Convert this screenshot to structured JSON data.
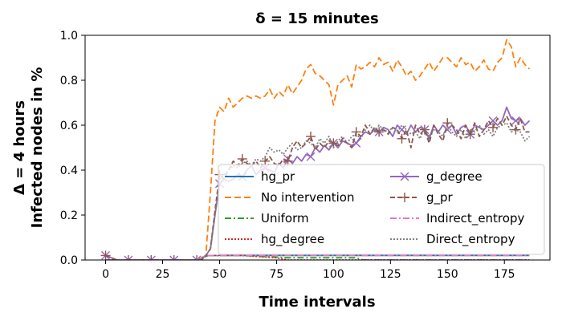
{
  "chart_data": {
    "type": "line",
    "title": "δ = 15 minutes",
    "xlabel": "Time intervals",
    "ylabel_line1": "Δ = 4 hours",
    "ylabel_line2": "Infected nodes in %",
    "xlim": [
      -9,
      195
    ],
    "ylim": [
      0,
      1.0
    ],
    "xticks": [
      0,
      25,
      50,
      75,
      100,
      125,
      150,
      175
    ],
    "yticks": [
      0.0,
      0.2,
      0.4,
      0.6,
      0.8,
      1.0
    ],
    "grid": false,
    "legend_placement": "lower-right",
    "series": [
      {
        "name": "hg_pr",
        "color": "#1f77b4",
        "dash": "",
        "marker": "",
        "x": [
          0,
          40,
          45,
          60,
          80,
          100,
          130,
          160,
          186
        ],
        "y": [
          0.0,
          0.0,
          0.02,
          0.02,
          0.02,
          0.02,
          0.02,
          0.02,
          0.02
        ]
      },
      {
        "name": "No intervention",
        "color": "#ff7f0e",
        "dash": "8,4",
        "marker": "",
        "x": [
          0,
          40,
          44,
          46,
          48,
          50,
          52,
          54,
          56,
          58,
          60,
          62,
          64,
          66,
          68,
          70,
          72,
          74,
          76,
          78,
          80,
          82,
          84,
          86,
          88,
          90,
          92,
          94,
          96,
          98,
          100,
          102,
          104,
          106,
          108,
          110,
          112,
          114,
          116,
          118,
          120,
          122,
          124,
          126,
          128,
          130,
          132,
          134,
          136,
          138,
          140,
          142,
          144,
          146,
          148,
          150,
          152,
          154,
          156,
          158,
          160,
          162,
          164,
          166,
          168,
          170,
          172,
          174,
          176,
          178,
          180,
          182,
          184,
          186
        ],
        "y": [
          0.0,
          0.0,
          0.02,
          0.3,
          0.62,
          0.68,
          0.66,
          0.72,
          0.68,
          0.7,
          0.72,
          0.73,
          0.72,
          0.73,
          0.72,
          0.73,
          0.76,
          0.72,
          0.75,
          0.73,
          0.78,
          0.74,
          0.77,
          0.8,
          0.85,
          0.87,
          0.83,
          0.82,
          0.8,
          0.78,
          0.69,
          0.78,
          0.8,
          0.82,
          0.77,
          0.87,
          0.85,
          0.86,
          0.88,
          0.86,
          0.9,
          0.87,
          0.88,
          0.84,
          0.89,
          0.86,
          0.82,
          0.84,
          0.8,
          0.82,
          0.85,
          0.88,
          0.84,
          0.87,
          0.9,
          0.9,
          0.88,
          0.86,
          0.9,
          0.87,
          0.88,
          0.84,
          0.86,
          0.89,
          0.85,
          0.84,
          0.88,
          0.9,
          0.98,
          0.95,
          0.86,
          0.9,
          0.87,
          0.85
        ]
      },
      {
        "name": "Uniform",
        "color": "#2ca02c",
        "dash": "8,3,2,3",
        "marker": "",
        "x": [
          0,
          40,
          45,
          60,
          80,
          100,
          110,
          113,
          120,
          150,
          186
        ],
        "y": [
          0.0,
          0.0,
          0.02,
          0.02,
          0.01,
          0.01,
          0.01,
          0.0,
          0.0,
          0.0,
          0.0
        ]
      },
      {
        "name": "hg_degree",
        "color": "#d62728",
        "dash": "2,2",
        "marker": "",
        "x": [
          0,
          40,
          45,
          60,
          75,
          80,
          120,
          186
        ],
        "y": [
          0.0,
          0.0,
          0.02,
          0.02,
          0.01,
          0.0,
          0.0,
          0.0
        ]
      },
      {
        "name": "g_degree",
        "color": "#9467bd",
        "dash": "",
        "marker": "x",
        "x": [
          0,
          5,
          10,
          15,
          20,
          25,
          30,
          35,
          40,
          42,
          44,
          46,
          48,
          50,
          52,
          54,
          56,
          58,
          60,
          62,
          64,
          66,
          68,
          70,
          72,
          74,
          76,
          78,
          80,
          82,
          84,
          86,
          88,
          90,
          92,
          94,
          96,
          98,
          100,
          102,
          104,
          106,
          108,
          110,
          112,
          114,
          116,
          118,
          120,
          122,
          124,
          126,
          128,
          130,
          132,
          134,
          136,
          138,
          140,
          142,
          144,
          146,
          148,
          150,
          152,
          154,
          156,
          158,
          160,
          162,
          164,
          166,
          168,
          170,
          172,
          174,
          176,
          178,
          180,
          182,
          184,
          186
        ],
        "y": [
          0.02,
          0.0,
          0.0,
          0.0,
          0.0,
          0.0,
          0.0,
          0.0,
          0.0,
          0.0,
          0.02,
          0.05,
          0.2,
          0.34,
          0.36,
          0.35,
          0.36,
          0.38,
          0.37,
          0.4,
          0.42,
          0.38,
          0.4,
          0.41,
          0.4,
          0.39,
          0.43,
          0.41,
          0.45,
          0.43,
          0.46,
          0.44,
          0.47,
          0.46,
          0.5,
          0.48,
          0.51,
          0.49,
          0.52,
          0.5,
          0.53,
          0.52,
          0.51,
          0.52,
          0.55,
          0.57,
          0.56,
          0.58,
          0.57,
          0.59,
          0.58,
          0.55,
          0.6,
          0.58,
          0.56,
          0.6,
          0.57,
          0.59,
          0.58,
          0.54,
          0.6,
          0.57,
          0.6,
          0.58,
          0.6,
          0.56,
          0.59,
          0.6,
          0.56,
          0.6,
          0.59,
          0.58,
          0.6,
          0.62,
          0.6,
          0.62,
          0.68,
          0.63,
          0.62,
          0.63,
          0.6,
          0.62
        ]
      },
      {
        "name": "g_pr",
        "color": "#8c564b",
        "dash": "6,3",
        "marker": "+",
        "x": [
          0,
          5,
          10,
          15,
          20,
          25,
          30,
          35,
          40,
          42,
          44,
          46,
          48,
          50,
          52,
          54,
          56,
          58,
          60,
          62,
          64,
          66,
          68,
          70,
          72,
          74,
          76,
          78,
          80,
          82,
          84,
          86,
          88,
          90,
          92,
          94,
          96,
          98,
          100,
          102,
          104,
          106,
          108,
          110,
          112,
          114,
          116,
          118,
          120,
          122,
          124,
          126,
          128,
          130,
          132,
          134,
          136,
          138,
          140,
          142,
          144,
          146,
          148,
          150,
          152,
          154,
          156,
          158,
          160,
          162,
          164,
          166,
          168,
          170,
          172,
          174,
          176,
          178,
          180,
          182,
          184,
          186
        ],
        "y": [
          0.02,
          0.0,
          0.0,
          0.0,
          0.0,
          0.0,
          0.0,
          0.0,
          0.0,
          0.0,
          0.02,
          0.05,
          0.22,
          0.38,
          0.36,
          0.4,
          0.44,
          0.42,
          0.45,
          0.43,
          0.42,
          0.44,
          0.41,
          0.44,
          0.46,
          0.43,
          0.42,
          0.45,
          0.44,
          0.5,
          0.53,
          0.5,
          0.52,
          0.55,
          0.49,
          0.52,
          0.5,
          0.53,
          0.52,
          0.51,
          0.54,
          0.52,
          0.5,
          0.57,
          0.55,
          0.6,
          0.56,
          0.59,
          0.57,
          0.58,
          0.56,
          0.59,
          0.58,
          0.54,
          0.58,
          0.5,
          0.6,
          0.56,
          0.58,
          0.52,
          0.6,
          0.56,
          0.53,
          0.61,
          0.6,
          0.58,
          0.54,
          0.6,
          0.56,
          0.61,
          0.55,
          0.58,
          0.62,
          0.59,
          0.63,
          0.6,
          0.64,
          0.6,
          0.58,
          0.63,
          0.57,
          0.57
        ]
      },
      {
        "name": "Indirect_entropy",
        "color": "#e377c2",
        "dash": "8,3,2,3",
        "marker": "",
        "x": [
          0,
          40,
          45,
          60,
          80,
          100,
          130,
          160,
          186
        ],
        "y": [
          0.0,
          0.0,
          0.02,
          0.02,
          0.02,
          0.02,
          0.02,
          0.02,
          0.02
        ]
      },
      {
        "name": "Direct_entropy",
        "color": "#7f7f7f",
        "dash": "2,2",
        "marker": "",
        "x": [
          0,
          40,
          44,
          46,
          48,
          50,
          52,
          54,
          56,
          58,
          60,
          62,
          64,
          66,
          68,
          70,
          72,
          74,
          76,
          78,
          80,
          82,
          84,
          86,
          88,
          90,
          92,
          94,
          96,
          98,
          100,
          102,
          104,
          106,
          108,
          110,
          112,
          114,
          116,
          118,
          120,
          122,
          124,
          126,
          128,
          130,
          132,
          134,
          136,
          138,
          140,
          142,
          144,
          146,
          148,
          150,
          152,
          154,
          156,
          158,
          160,
          162,
          164,
          166,
          168,
          170,
          172,
          174,
          176,
          178,
          180,
          182,
          184,
          186
        ],
        "y": [
          0.0,
          0.0,
          0.02,
          0.05,
          0.2,
          0.36,
          0.38,
          0.4,
          0.42,
          0.41,
          0.43,
          0.44,
          0.42,
          0.45,
          0.44,
          0.46,
          0.5,
          0.48,
          0.49,
          0.47,
          0.5,
          0.52,
          0.49,
          0.5,
          0.53,
          0.52,
          0.5,
          0.54,
          0.52,
          0.55,
          0.5,
          0.53,
          0.55,
          0.52,
          0.55,
          0.56,
          0.54,
          0.58,
          0.6,
          0.57,
          0.6,
          0.58,
          0.57,
          0.59,
          0.57,
          0.6,
          0.58,
          0.56,
          0.57,
          0.54,
          0.59,
          0.55,
          0.58,
          0.57,
          0.55,
          0.6,
          0.57,
          0.55,
          0.58,
          0.54,
          0.58,
          0.57,
          0.6,
          0.56,
          0.58,
          0.55,
          0.59,
          0.6,
          0.61,
          0.57,
          0.58,
          0.57,
          0.53,
          0.55
        ]
      }
    ]
  }
}
